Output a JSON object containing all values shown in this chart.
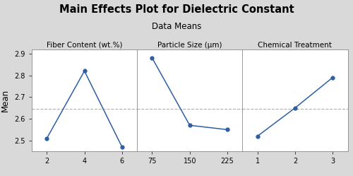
{
  "title": "Main Effects Plot for Dielectric Constant",
  "subtitle": "Data Means",
  "ylabel": "Mean",
  "panels": [
    {
      "label": "Fiber Content (wt.%)",
      "x": [
        2,
        4,
        6
      ],
      "y": [
        2.51,
        2.82,
        2.47
      ],
      "xticks": [
        2,
        4,
        6
      ]
    },
    {
      "label": "Particle Size (μm)",
      "x": [
        75,
        150,
        225
      ],
      "y": [
        2.88,
        2.57,
        2.55
      ],
      "xticks": [
        75,
        150,
        225
      ]
    },
    {
      "label": "Chemical Treatment",
      "x": [
        1,
        2,
        3
      ],
      "y": [
        2.52,
        2.65,
        2.79
      ],
      "xticks": [
        1,
        2,
        3
      ]
    }
  ],
  "grand_mean": 2.647,
  "ylim": [
    2.45,
    2.92
  ],
  "yticks": [
    2.5,
    2.6,
    2.7,
    2.8,
    2.9
  ],
  "line_color": "#2e5fa3",
  "marker_color": "#2e5fa3",
  "bg_color": "#d9d9d9",
  "panel_bg": "#ffffff",
  "dashed_color": "#b0b0b0",
  "title_fontsize": 10.5,
  "subtitle_fontsize": 8.5,
  "label_fontsize": 7.5,
  "tick_fontsize": 7,
  "ylabel_fontsize": 8.5
}
